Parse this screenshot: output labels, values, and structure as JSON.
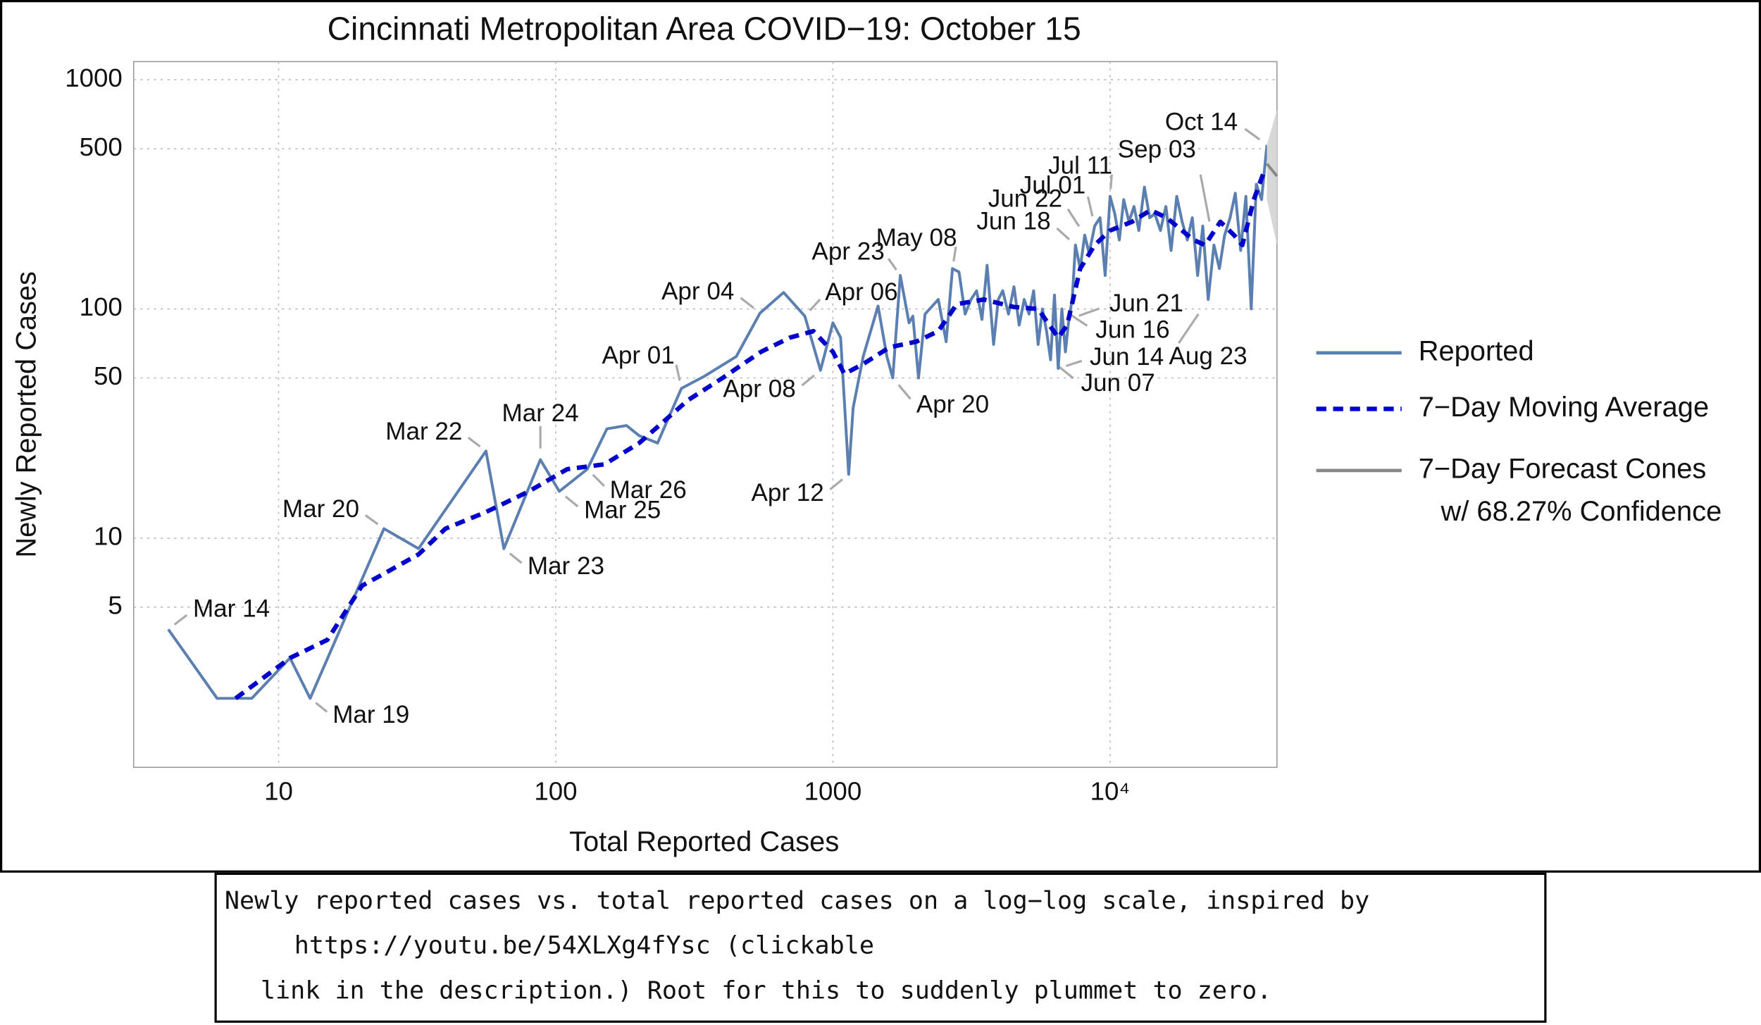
{
  "chart_data": {
    "type": "line",
    "title": "Cincinnati Metropolitan Area COVID−19: October 15",
    "x_label": "Total Reported Cases",
    "y_label": "Newly Reported Cases",
    "log_x": true,
    "log_y": true,
    "grid": true,
    "legend": "right",
    "xlim": [
      3,
      40000
    ],
    "ylim": [
      1,
      1200
    ],
    "xticks": [
      10,
      100,
      1000,
      {
        "value": 10000,
        "label": "10⁴"
      }
    ],
    "yticks": [
      5,
      10,
      50,
      100,
      500,
      1000
    ],
    "series": [
      {
        "name": "Reported",
        "color": "#5b7fb0",
        "style": "solid",
        "x": [
          4,
          6,
          8,
          11,
          13,
          24,
          32,
          56,
          65,
          88,
          103,
          130,
          153,
          180,
          200,
          233,
          284,
          345,
          448,
          546,
          664,
          792,
          902,
          1000,
          1066,
          1140,
          1183,
          1286,
          1455,
          1566,
          1644,
          1750,
          1882,
          1943,
          2037,
          2150,
          2400,
          2562,
          2700,
          2850,
          3000,
          3150,
          3300,
          3450,
          3600,
          3800,
          3950,
          4100,
          4300,
          4500,
          4700,
          4900,
          5100,
          5300,
          5500,
          5700,
          5900,
          6100,
          6300,
          6500,
          6700,
          6900,
          7100,
          7300,
          7500,
          7800,
          8100,
          8400,
          8800,
          9200,
          9600,
          10000,
          10400,
          10800,
          11200,
          11700,
          12200,
          12700,
          13300,
          13900,
          14500,
          15200,
          15900,
          16600,
          17400,
          18200,
          19000,
          19800,
          20700,
          21600,
          22600,
          23700,
          24800,
          25900,
          27100,
          28300,
          29600,
          30900,
          32300,
          33700,
          35200,
          36800
        ],
        "values": [
          4,
          2,
          2,
          3,
          2,
          11,
          9,
          24,
          9,
          22,
          16,
          20,
          30,
          31,
          28,
          26,
          45,
          51,
          62,
          96,
          118,
          93,
          54,
          87,
          75,
          19,
          37,
          62,
          103,
          62,
          50,
          140,
          87,
          93,
          50,
          95,
          110,
          72,
          150,
          145,
          95,
          110,
          120,
          90,
          155,
          70,
          110,
          120,
          95,
          125,
          85,
          110,
          95,
          120,
          70,
          100,
          80,
          60,
          115,
          55,
          100,
          65,
          90,
          110,
          190,
          150,
          210,
          175,
          230,
          250,
          140,
          310,
          260,
          200,
          300,
          240,
          280,
          220,
          340,
          250,
          260,
          220,
          280,
          180,
          310,
          240,
          200,
          250,
          140,
          230,
          110,
          190,
          150,
          210,
          250,
          320,
          180,
          310,
          100,
          350,
          300,
          520
        ]
      },
      {
        "name": "7−Day Moving Average",
        "color": "#0000cc",
        "style": "dashed",
        "x": [
          7,
          11,
          15,
          20,
          24,
          32,
          40,
          56,
          80,
          110,
          150,
          200,
          300,
          400,
          550,
          700,
          850,
          1000,
          1100,
          1300,
          1600,
          2000,
          2400,
          2800,
          3500,
          4500,
          5500,
          6500,
          7000,
          7800,
          8800,
          10000,
          12000,
          14000,
          16000,
          20000,
          22000,
          25000,
          28000,
          30000,
          33000,
          36000
        ],
        "values": [
          2,
          3,
          3.6,
          6.2,
          7,
          8.5,
          11,
          13,
          16,
          20,
          21,
          26,
          40,
          50,
          65,
          75,
          80,
          65,
          52,
          58,
          68,
          72,
          80,
          105,
          110,
          102,
          100,
          75,
          85,
          150,
          190,
          220,
          240,
          270,
          250,
          200,
          190,
          240,
          210,
          190,
          300,
          400
        ]
      },
      {
        "name": "7−Day Forecast Cones",
        "color": "#888888",
        "style": "cone",
        "x": [
          36800,
          40000
        ],
        "values": [
          430,
          380
        ],
        "lower": [
          300,
          190
        ],
        "upper": [
          520,
          740
        ]
      }
    ],
    "legend_note": "w/ 68.27% Confidence",
    "annotations": [
      {
        "text": "Mar 14",
        "x": 4,
        "y": 4
      },
      {
        "text": "Mar 19",
        "x": 13,
        "y": 2
      },
      {
        "text": "Mar 20",
        "x": 24,
        "y": 11
      },
      {
        "text": "Mar 22",
        "x": 56,
        "y": 24
      },
      {
        "text": "Mar 23",
        "x": 65,
        "y": 9
      },
      {
        "text": "Mar 24",
        "x": 88,
        "y": 22
      },
      {
        "text": "Mar 25",
        "x": 103,
        "y": 16
      },
      {
        "text": "Mar 26",
        "x": 130,
        "y": 20
      },
      {
        "text": "Apr 01",
        "x": 284,
        "y": 45
      },
      {
        "text": "Apr 04",
        "x": 546,
        "y": 96
      },
      {
        "text": "Apr 06",
        "x": 792,
        "y": 93
      },
      {
        "text": "Apr 08",
        "x": 902,
        "y": 54
      },
      {
        "text": "Apr 12",
        "x": 1140,
        "y": 19
      },
      {
        "text": "Apr 20",
        "x": 1644,
        "y": 50
      },
      {
        "text": "Apr 23",
        "x": 1750,
        "y": 140
      },
      {
        "text": "May 08",
        "x": 2700,
        "y": 150
      },
      {
        "text": "Jun 07",
        "x": 6100,
        "y": 60
      },
      {
        "text": "Jun 14",
        "x": 6500,
        "y": 55
      },
      {
        "text": "Jun 16",
        "x": 6700,
        "y": 100
      },
      {
        "text": "Jun 18",
        "x": 7500,
        "y": 190
      },
      {
        "text": "Jun 21",
        "x": 7100,
        "y": 90
      },
      {
        "text": "Jun 22",
        "x": 8100,
        "y": 210
      },
      {
        "text": "Jul 01",
        "x": 8800,
        "y": 230
      },
      {
        "text": "Jul 11",
        "x": 10000,
        "y": 310
      },
      {
        "text": "Aug 23",
        "x": 22600,
        "y": 110
      },
      {
        "text": "Sep 03",
        "x": 23700,
        "y": 190
      },
      {
        "text": "Oct 14",
        "x": 36800,
        "y": 520
      }
    ]
  },
  "caption": {
    "lines": [
      "Newly reported cases vs. total reported cases on a log−log scale, inspired by",
      "https://youtu.be/54XLXg4fYsc (clickable",
      "link in the description.) Root for this to suddenly plummet to zero."
    ]
  }
}
